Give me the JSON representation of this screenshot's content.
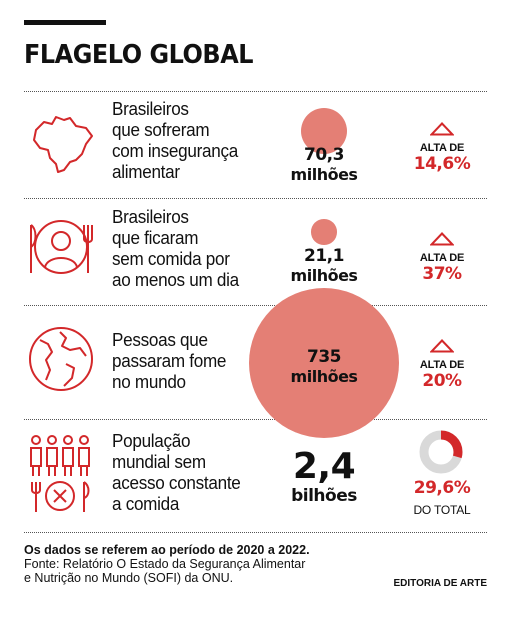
{
  "title": "FLAGELO GLOBAL",
  "colors": {
    "accent": "#d3282a",
    "bubble": "#e47f75",
    "ink": "#111111",
    "ring_bg": "#d9d9d9"
  },
  "chart_data": {
    "type": "table",
    "title": "FLAGELO GLOBAL",
    "rows": [
      {
        "icon": "brazil-map-icon",
        "description": [
          "Brasileiros",
          "que sofreram",
          "com insegurança",
          "alimentar"
        ],
        "value": 70.3,
        "value_text": "70,3",
        "unit": "milhões",
        "change_label": "ALTA DE",
        "change_text": "14,6%",
        "change_pct": 14.6
      },
      {
        "icon": "empty-plate-person-icon",
        "description": [
          "Brasileiros",
          "que ficaram",
          "sem comida por",
          "ao menos um dia"
        ],
        "value": 21.1,
        "value_text": "21,1",
        "unit": "milhões",
        "change_label": "ALTA DE",
        "change_text": "37%",
        "change_pct": 37
      },
      {
        "icon": "globe-icon",
        "description": [
          "Pessoas que",
          "passaram fome",
          "no mundo"
        ],
        "value": 735,
        "value_text": "735",
        "unit": "milhões",
        "change_label": "ALTA DE",
        "change_text": "20%",
        "change_pct": 20
      },
      {
        "icon": "population-plate-icon",
        "description": [
          "População",
          "mundial sem",
          "acesso constante",
          "a comida"
        ],
        "value": 2.4,
        "value_text": "2,4",
        "unit": "bilhões",
        "share_text": "29,6%",
        "share_pct": 29.6,
        "share_label": "DO TOTAL"
      }
    ]
  },
  "footer": {
    "note": "Os dados se referem ao período de 2020 a 2022.",
    "source_line1": "Fonte: Relatório O Estado da Segurança Alimentar",
    "source_line2": "e Nutrição no Mundo (SOFI) da ONU.",
    "credit": "EDITORIA DE ARTE"
  }
}
